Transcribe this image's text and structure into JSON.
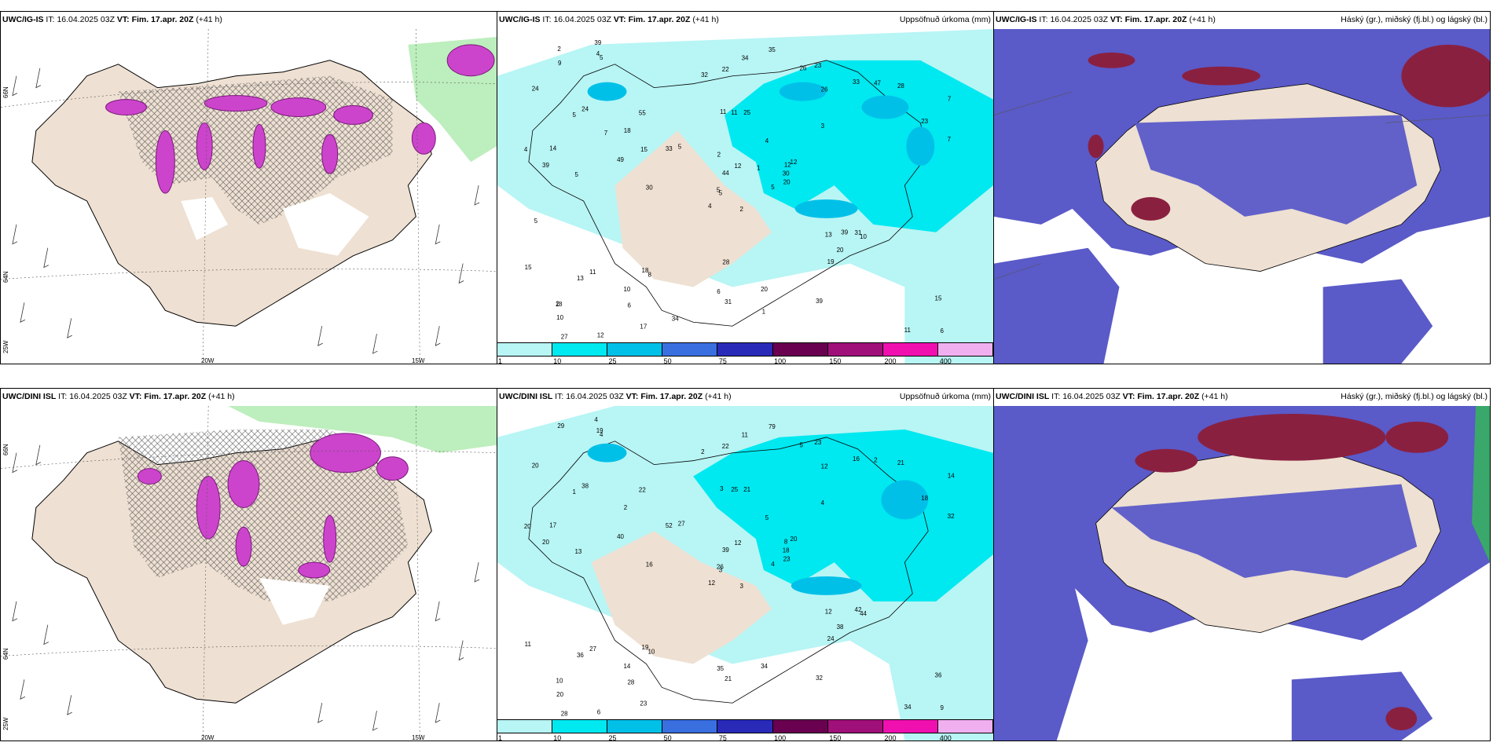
{
  "panels": [
    {
      "model": "UWC/IG-IS",
      "init_label": "IT:",
      "init": "16.04.2025 03Z",
      "valid_label": "VT:",
      "valid": "Fim. 17.apr. 20Z",
      "lead": "(+41 h)",
      "right_title": "",
      "lon_labels": [
        "20W",
        "15W"
      ],
      "lat_labels": [
        "66N",
        "64N",
        "25W"
      ]
    },
    {
      "model": "UWC/IG-IS",
      "init_label": "IT:",
      "init": "16.04.2025 03Z",
      "valid_label": "VT:",
      "valid": "Fim. 17.apr. 20Z",
      "lead": "(+41 h)",
      "right_title": "Uppsöfnuð úrkoma (mm)",
      "values": [
        "2",
        "5",
        "5",
        "2",
        "12",
        "8",
        "23",
        "25",
        "26",
        "5",
        "5",
        "6",
        "5",
        "7",
        "4",
        "3",
        "12",
        "11",
        "4",
        "11",
        "5",
        "10",
        "6",
        "11",
        "12",
        "10",
        "24",
        "22",
        "39",
        "13",
        "7",
        "5",
        "6",
        "44",
        "55",
        "33",
        "18",
        "11",
        "15",
        "31",
        "35",
        "33",
        "49",
        "19",
        "17",
        "4",
        "30",
        "27",
        "31",
        "20",
        "13",
        "23",
        "24",
        "20",
        "39",
        "10",
        "4",
        "2",
        "20",
        "28",
        "34",
        "30",
        "14",
        "18",
        "47",
        "39",
        "26",
        "32",
        "12",
        "15",
        "28",
        "34",
        "39",
        "15",
        "18",
        "9",
        "7",
        "5",
        "2",
        "1",
        "1"
      ]
    },
    {
      "model": "UWC/IG-IS",
      "init_label": "IT:",
      "init": "16.04.2025 03Z",
      "valid_label": "VT:",
      "valid": "Fim. 17.apr. 20Z",
      "lead": "(+41 h)",
      "right_title": "Háský (gr.), miðský (fj.bl.) og lágský (bl.)"
    },
    {
      "model": "UWC/DINI ISL",
      "init_label": "IT:",
      "init": "16.04.2025 03Z",
      "valid_label": "VT:",
      "valid": "Fim. 17.apr. 20Z",
      "lead": "(+41 h)",
      "right_title": "",
      "lon_labels": [
        "20W",
        "15W"
      ],
      "lat_labels": [
        "66N",
        "64N",
        "25W"
      ]
    },
    {
      "model": "UWC/DINI ISL",
      "init_label": "IT:",
      "init": "16.04.2025 03Z",
      "valid_label": "VT:",
      "valid": "Fim. 17.apr. 20Z",
      "lead": "(+41 h)",
      "right_title": "Uppsöfnuð úrkoma (mm)",
      "values": [
        "3",
        "1",
        "3",
        "10",
        "8",
        "10",
        "23",
        "21",
        "12",
        "4",
        "4",
        "9",
        "13",
        "14",
        "12",
        "4",
        "6",
        "3",
        "5",
        "27",
        "27",
        "20",
        "28",
        "25",
        "20",
        "44",
        "38",
        "22",
        "20",
        "12",
        "32",
        "26",
        "35",
        "39",
        "22",
        "16",
        "19",
        "34",
        "36",
        "42",
        "79",
        "52",
        "40",
        "24",
        "23",
        "20",
        "18",
        "28",
        "21",
        "23",
        "36",
        "18",
        "20",
        "38",
        "32",
        "14",
        "19",
        "29",
        "34",
        "21",
        "11",
        "16",
        "17",
        "2",
        "2",
        "4",
        "5",
        "2",
        "12",
        "11"
      ]
    },
    {
      "model": "UWC/DINI ISL",
      "init_label": "IT:",
      "init": "16.04.2025 03Z",
      "valid_label": "VT:",
      "valid": "Fim. 17.apr. 20Z",
      "lead": "(+41 h)",
      "right_title": "Háský (gr.), miðský (fj.bl.) og lágský (bl.)"
    }
  ],
  "colorbar": {
    "ticks": [
      "1",
      "10",
      "25",
      "50",
      "75",
      "100",
      "150",
      "200",
      "400"
    ],
    "colors": [
      "#b8f5f5",
      "#00e8f0",
      "#00c0e8",
      "#3a6fe0",
      "#2a2ab8",
      "#6a0050",
      "#a0107a",
      "#f010b0",
      "#f0b0f0"
    ]
  },
  "colors": {
    "land": "#eee0d2",
    "sea_precip": "#b8f5f5",
    "heavy_precip": "#cc44cc",
    "low_cloud": "#5a5ac8",
    "high_cloud": "#8a2040",
    "snow_green": "#a0e8a0"
  }
}
